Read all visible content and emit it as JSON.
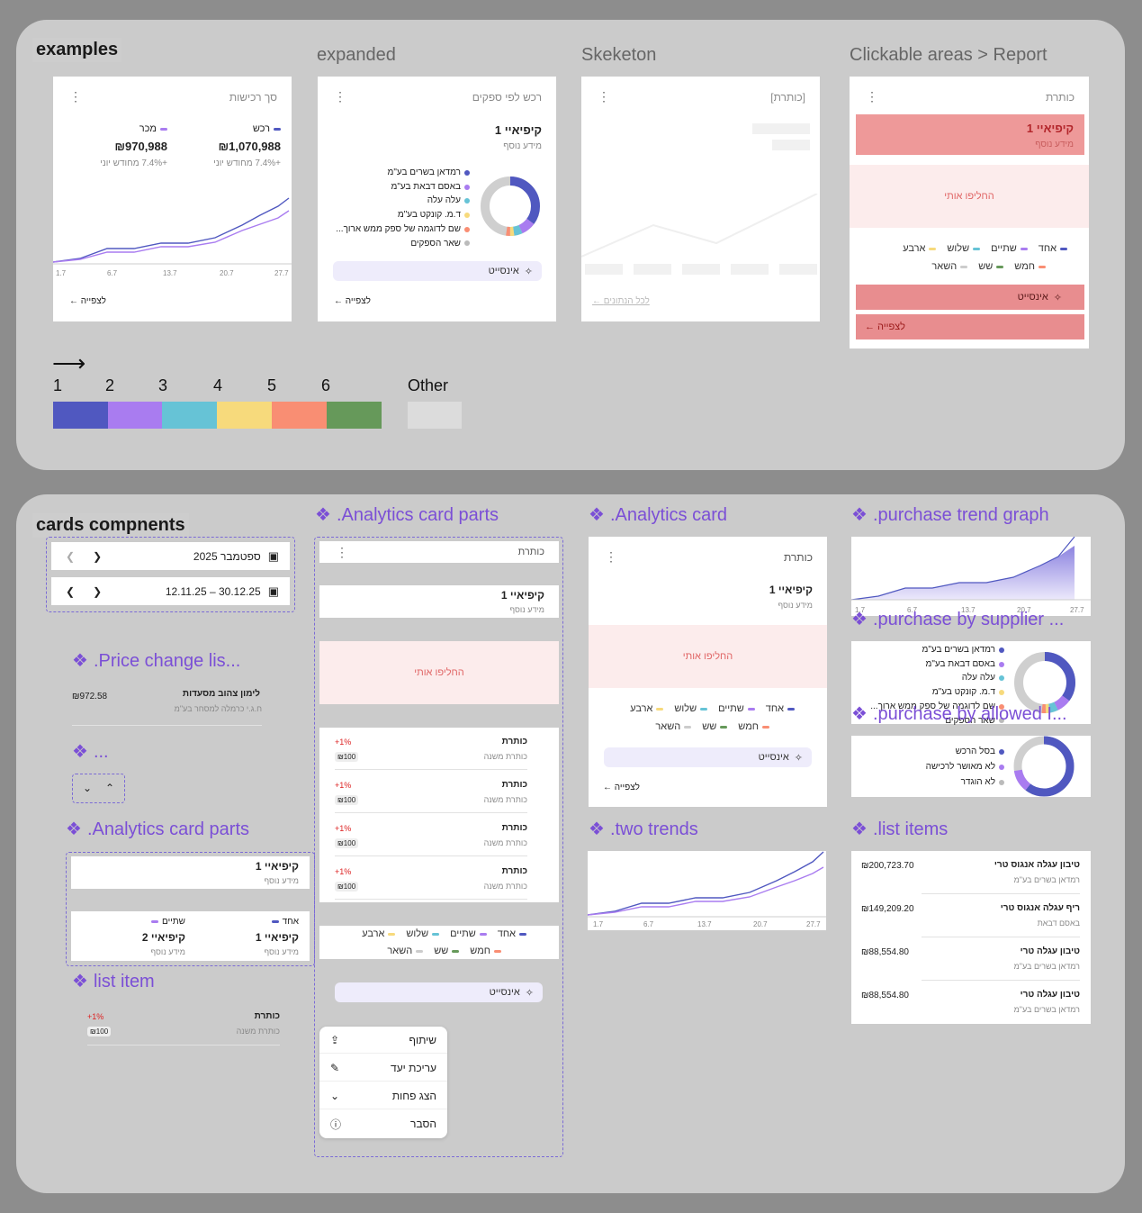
{
  "top": {
    "title": "examples",
    "columns": [
      "expanded",
      "Skeketon",
      "Clickable areas > Report"
    ],
    "card1": {
      "title": "סך רכישות",
      "stats": [
        {
          "label": "רכש",
          "value": "₪1,070,988",
          "sub": "+7.4% מחודש יוני"
        },
        {
          "label": "מכר",
          "value": "₪970,988",
          "sub": "+7.4% מחודש יוני"
        }
      ],
      "x_ticks": [
        "1.7",
        "6.7",
        "13.7",
        "20.7",
        "27.7"
      ],
      "footer": "לצפייה"
    },
    "card2": {
      "title": "רכש לפי ספקים",
      "kpi": "קיפיאיי 1",
      "kpi_sub": "מידע נוסף",
      "legend": [
        "רמדאן בשרים בע\"מ",
        "באסם דבאת בע\"מ",
        "עלה עלה",
        "ד.מ. קונקט בע\"מ",
        "שם לדוגמה של ספק ממש ארוך...",
        "שאר הספקים"
      ],
      "insight": "אינסייט",
      "footer": "לצפייה"
    },
    "card3": {
      "title": "[כותרת]",
      "footer": "לכל הנתונים"
    },
    "card4": {
      "title": "כותרת",
      "kpi": "קיפיאיי 1",
      "kpi_sub": "מידע נוסף",
      "swap": "החליפו אותי",
      "legend1": [
        "אחד",
        "שתיים",
        "שלוש",
        "ארבע"
      ],
      "legend2": [
        "חמש",
        "שש",
        "השאר"
      ],
      "insight": "אינסייט",
      "footer": "לצפייה"
    },
    "palette": {
      "numbers": [
        "1",
        "2",
        "3",
        "4",
        "5",
        "6"
      ],
      "other": "Other"
    }
  },
  "colors": {
    "c1": "#5058c0",
    "c2": "#a97cf0",
    "c3": "#66c3d6",
    "c4": "#f7da7c",
    "c5": "#f98e73",
    "c6": "#66995a",
    "other": "#dcdcdc",
    "accent": "#7b4fd6"
  },
  "bottom": {
    "title": "cards compnents",
    "date1": "ספטמבר 2025",
    "date2": "12.11.25 – 30.12.25",
    "price_title": ".Price change lis...",
    "price_item": {
      "name": "לימון צהוב מסעדות",
      "sub": "ח.ג.י כרמלה למסחר בע\"מ",
      "value": "₪972.58"
    },
    "ellipsis_title": "...",
    "parts_title_a": ".Analytics card parts",
    "parts_a": {
      "kpi": "קיפיאיי 1",
      "kpi_sub": "מידע נוסף",
      "two_kpis": [
        {
          "label": "אחד",
          "kpi": "קיפיאיי 1",
          "sub": "מידע נוסף"
        },
        {
          "label": "שתיים",
          "kpi": "קיפיאיי 2",
          "sub": "מידע נוסף"
        }
      ]
    },
    "list_item_title": "list item",
    "list_item": {
      "title": "כותרת",
      "sub": "כותרת משנה",
      "change": "+1%",
      "value": "₪100"
    },
    "parts_title_b": ".Analytics card parts",
    "parts_b": {
      "header": "כותרת",
      "kpi": "קיפיאיי 1",
      "kpi_sub": "מידע נוסף",
      "swap": "החליפו אותי",
      "rows": [
        {
          "title": "כותרת",
          "sub": "כותרת משנה",
          "change": "+1%",
          "value": "₪100"
        },
        {
          "title": "כותרת",
          "sub": "כותרת משנה",
          "change": "+1%",
          "value": "₪100"
        },
        {
          "title": "כותרת",
          "sub": "כותרת משנה",
          "change": "+1%",
          "value": "₪100"
        },
        {
          "title": "כותרת",
          "sub": "כותרת משנה",
          "change": "+1%",
          "value": "₪100"
        }
      ],
      "legend1": [
        "אחד",
        "שתיים",
        "שלוש",
        "ארבע"
      ],
      "legend2": [
        "חמש",
        "שש",
        "השאר"
      ],
      "insight": "אינסייט",
      "menu": [
        "שיתוף",
        "עריכת יעד",
        "הצג פחות",
        "הסבר"
      ]
    },
    "analytics_title": ".Analytics card",
    "analytics": {
      "title": "כותרת",
      "kpi": "קיפיאיי 1",
      "kpi_sub": "מידע נוסף",
      "swap": "החליפו אותי",
      "legend1": [
        "אחד",
        "שתיים",
        "שלוש",
        "ארבע"
      ],
      "legend2": [
        "חמש",
        "שש",
        "השאר"
      ],
      "insight": "אינסייט",
      "footer": "לצפייה"
    },
    "two_trends_title": ".two trends",
    "x_ticks": [
      "1.7",
      "6.7",
      "13.7",
      "20.7",
      "27.7"
    ],
    "purchase_trend_title": ".purchase trend graph",
    "supplier_title": ".purchase by supplier ...",
    "supplier_legend": [
      "רמדאן בשרים בע\"מ",
      "באסם דבאת בע\"מ",
      "עלה עלה",
      "ד.מ. קונקט בע\"מ",
      "שם לדוגמה של ספק ממש ארוך...",
      "שאר הספקים"
    ],
    "allowed_title": ".purchase by allowed I...",
    "allowed_legend": [
      "בסל הרכש",
      "לא מאושר לרכישה",
      "לא הוגדר"
    ],
    "list_items_title": ".list items",
    "list_items": [
      {
        "title": "טיבון עגלה אנגוס טרי",
        "sub": "רמדאן בשרים בע\"מ",
        "value": "₪200,723.70"
      },
      {
        "title": "ריף עגלה אנגוס טרי",
        "sub": "באסם דבאת",
        "value": "₪149,209.20"
      },
      {
        "title": "טיבון עגלה טרי",
        "sub": "רמדאן בשרים בע\"מ",
        "value": "₪88,554.80"
      },
      {
        "title": "טיבון עגלה טרי",
        "sub": "רמדאן בשרים בע\"מ",
        "value": "₪88,554.80"
      }
    ]
  }
}
